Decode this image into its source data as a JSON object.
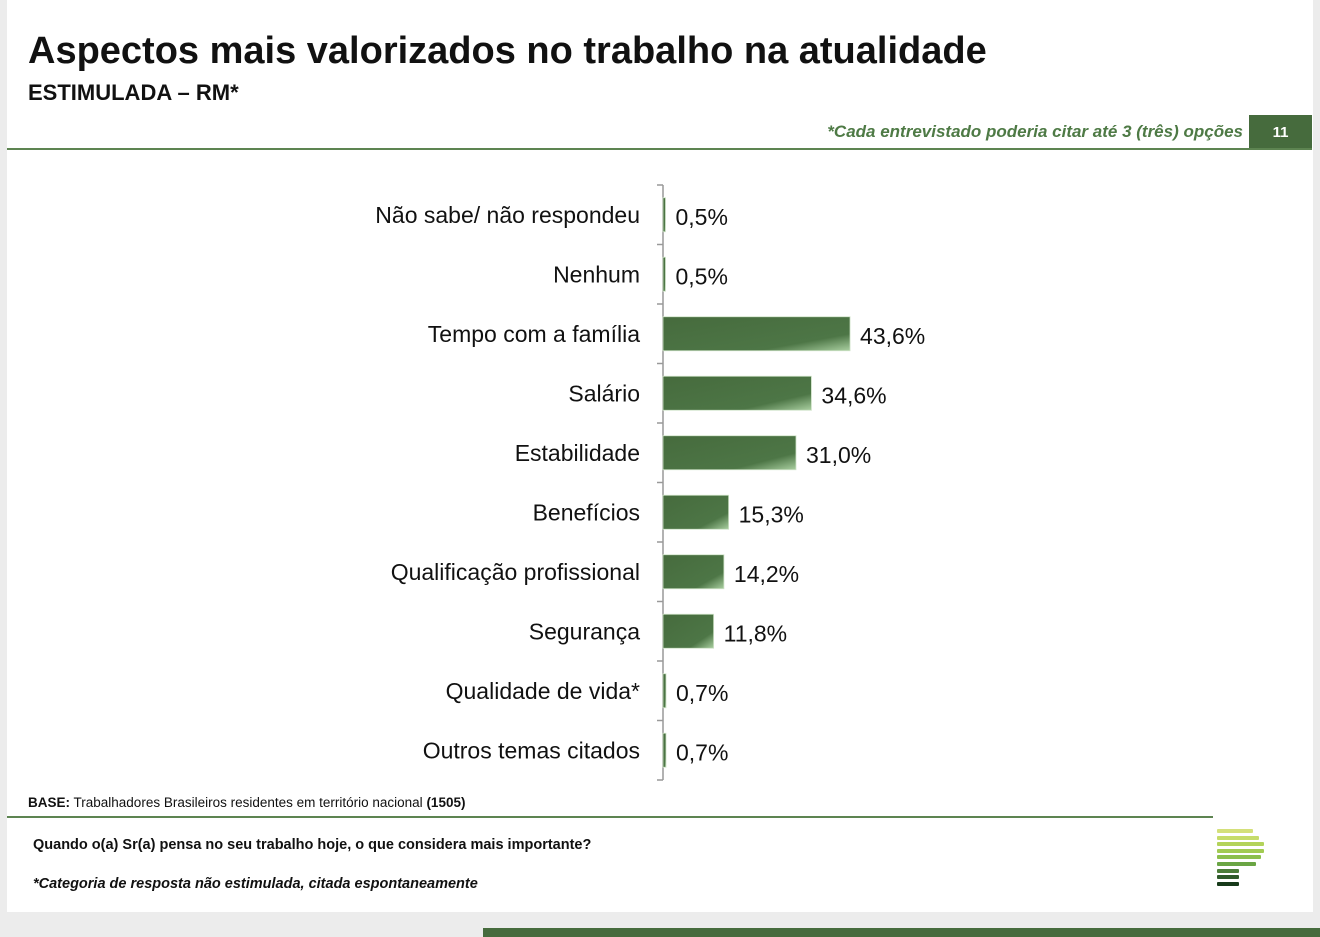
{
  "header": {
    "title": "Aspectos mais valorizados no trabalho na atualidade",
    "subtitle": "ESTIMULADA – RM*",
    "note": "*Cada entrevistado poderia citar até 3 (três) opções",
    "page_number": "11"
  },
  "colors": {
    "accent": "#466b3d",
    "bar": "#4a7344",
    "note": "#4e7a45"
  },
  "chart_data": {
    "type": "bar",
    "orientation": "horizontal",
    "categories": [
      "Não sabe/ não respondeu",
      "Nenhum",
      "Tempo com a família",
      "Salário",
      "Estabilidade",
      "Benefícios",
      "Qualificação profissional",
      "Segurança",
      "Qualidade de vida*",
      "Outros temas citados"
    ],
    "values": [
      0.5,
      0.5,
      43.6,
      34.6,
      31.0,
      15.3,
      14.2,
      11.8,
      0.7,
      0.7
    ],
    "data_labels": [
      "0,5%",
      "0,5%",
      "43,6%",
      "34,6%",
      "31,0%",
      "15,3%",
      "14,2%",
      "11,8%",
      "0,7%",
      "0,7%"
    ],
    "grid": false
  },
  "footer": {
    "base_label": "BASE:",
    "base_text": " Trabalhadores Brasileiros residentes em território nacional ",
    "base_count": "(1505)",
    "question": "Quando o(a) Sr(a) pensa no seu trabalho hoje, o que considera mais importante?",
    "footnote": "*Categoria de resposta não estimulada, citada espontaneamente"
  }
}
